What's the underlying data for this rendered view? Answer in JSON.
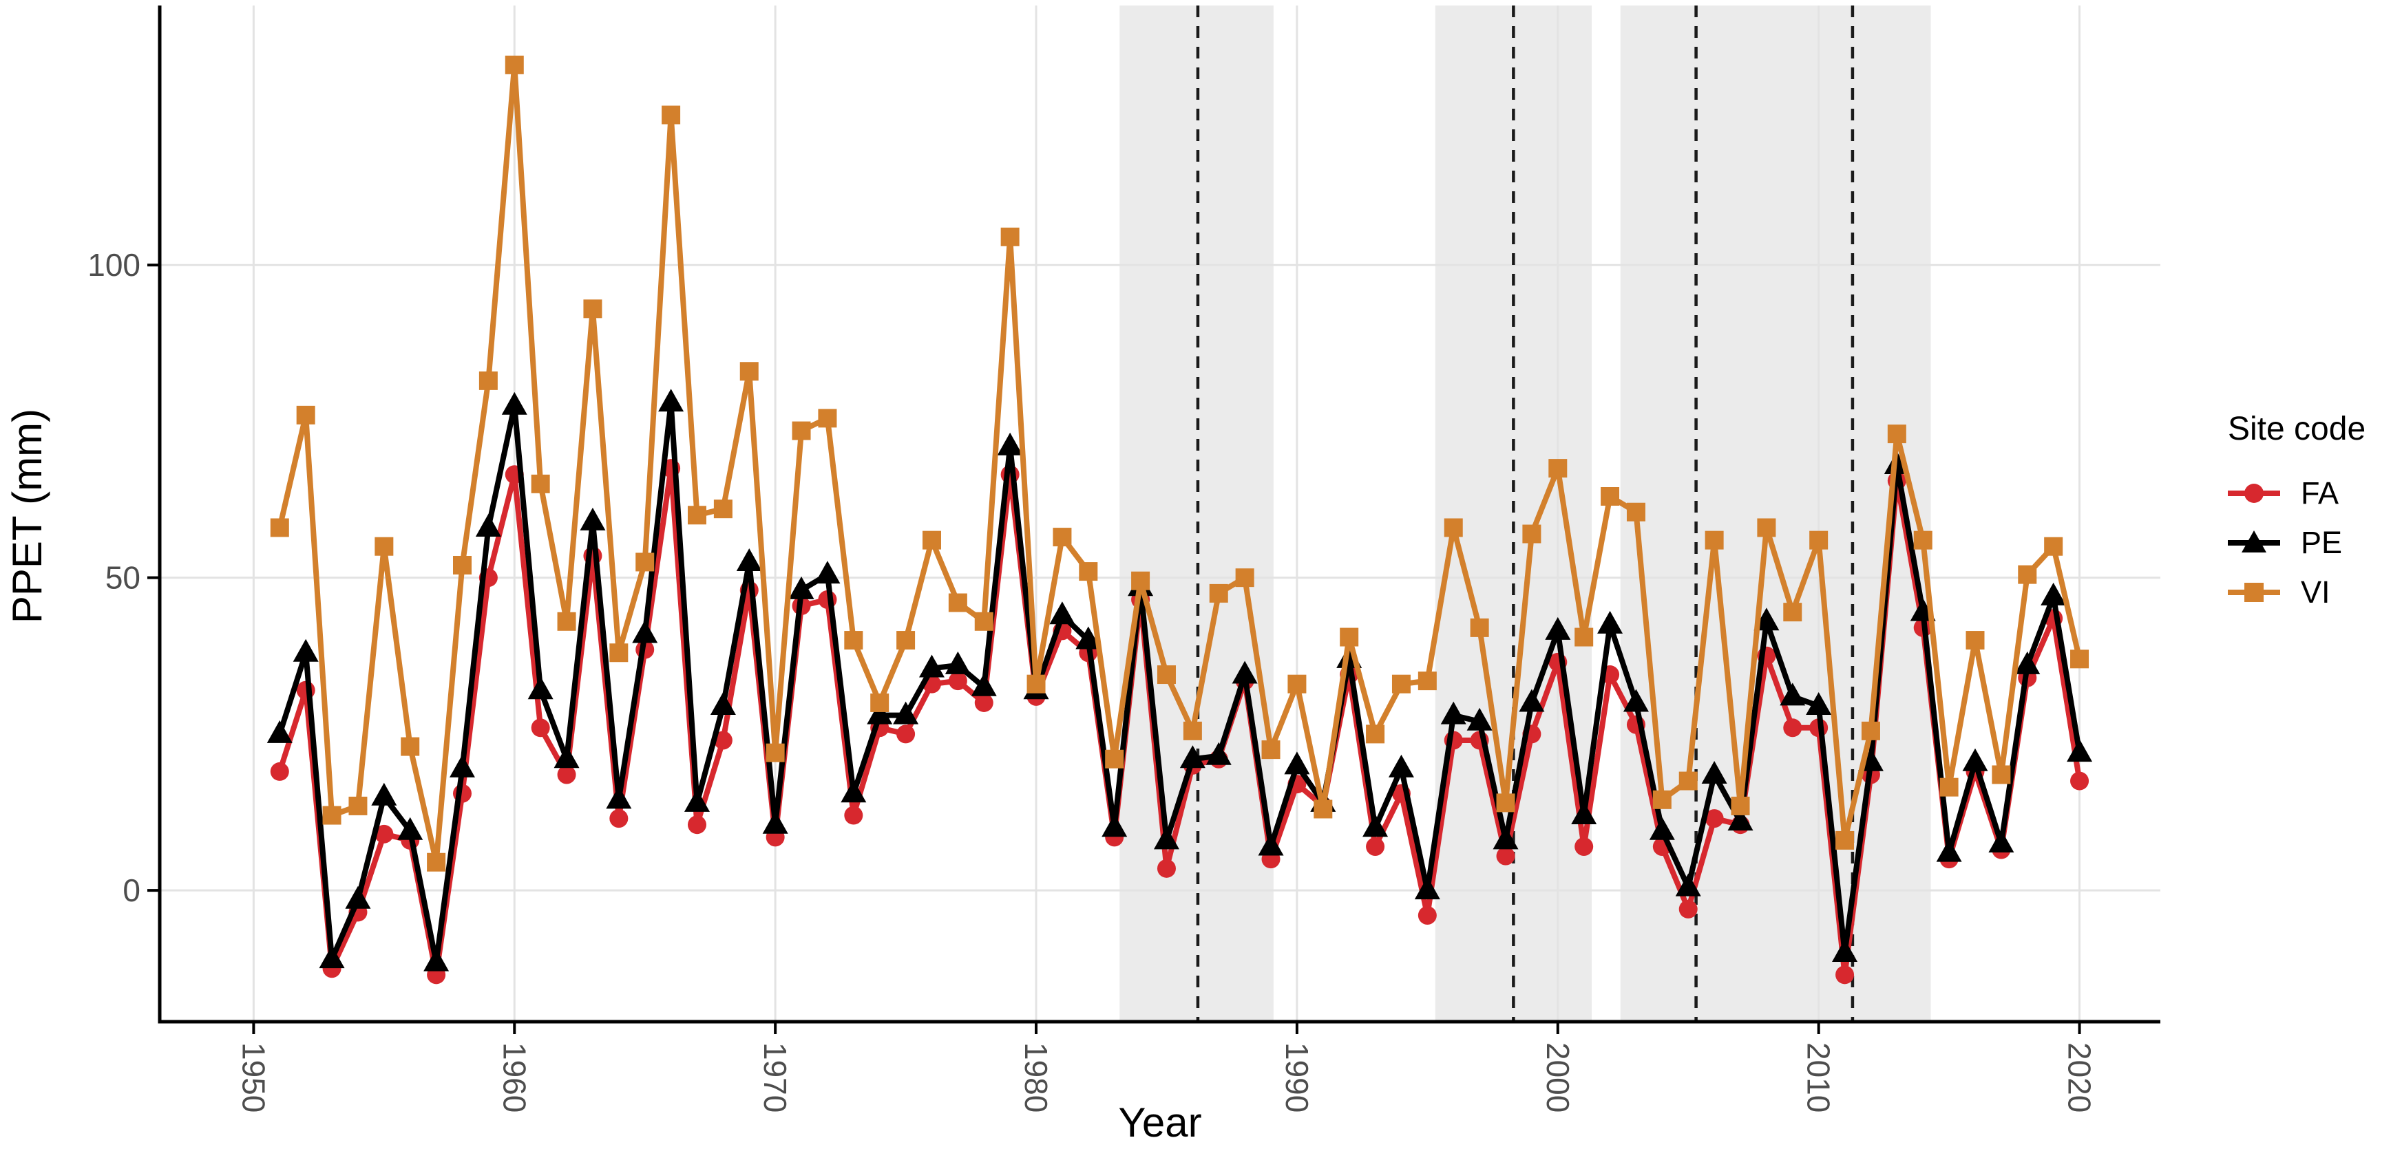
{
  "chart_data": {
    "type": "line",
    "title": "",
    "xlabel": "Year",
    "ylabel": "PPET (mm)",
    "legend_title": "Site code",
    "legend_position": "right",
    "grid": "major",
    "xlim": [
      1946.4,
      2023.1
    ],
    "ylim": [
      -21,
      141.5
    ],
    "x_ticks": [
      1950,
      1960,
      1970,
      1980,
      1990,
      2000,
      2010,
      2020
    ],
    "y_ticks": [
      0,
      50,
      100
    ],
    "shaded_bands": [
      [
        1983.2,
        1989.1
      ],
      [
        1995.3,
        2001.3
      ],
      [
        2002.4,
        2014.3
      ]
    ],
    "dashed_vlines": [
      1986.2,
      1998.3,
      2005.3,
      2011.3
    ],
    "x": [
      1951,
      1952,
      1953,
      1954,
      1955,
      1956,
      1957,
      1958,
      1959,
      1960,
      1961,
      1962,
      1963,
      1964,
      1965,
      1966,
      1967,
      1968,
      1969,
      1970,
      1971,
      1972,
      1973,
      1974,
      1975,
      1976,
      1977,
      1978,
      1979,
      1980,
      1981,
      1982,
      1983,
      1984,
      1985,
      1986,
      1987,
      1988,
      1989,
      1990,
      1991,
      1992,
      1993,
      1994,
      1995,
      1996,
      1997,
      1998,
      1999,
      2000,
      2001,
      2002,
      2003,
      2004,
      2005,
      2006,
      2007,
      2008,
      2009,
      2010,
      2011,
      2012,
      2013,
      2014,
      2015,
      2016,
      2017,
      2018,
      2019,
      2020
    ],
    "series": [
      {
        "name": "FA",
        "color": "#d7282e",
        "marker": "circle",
        "values": [
          19,
          32,
          -12.5,
          -3.5,
          9,
          8,
          -13.5,
          15.5,
          50,
          66.5,
          26,
          18.5,
          53.5,
          11.5,
          38.5,
          67.5,
          10.5,
          24,
          48,
          8.5,
          45.5,
          46.5,
          12,
          26,
          25,
          33,
          33.5,
          30,
          66.5,
          31,
          41.5,
          38,
          8.5,
          46.5,
          3.5,
          20,
          21,
          33.5,
          5,
          17,
          13.5,
          34.5,
          7,
          15.5,
          -4,
          24,
          24,
          5.5,
          25,
          36.5,
          7,
          34.5,
          26.5,
          7,
          -3,
          11.5,
          10.5,
          37.5,
          26,
          26,
          -13.5,
          18.5,
          65.5,
          42,
          5,
          19,
          6.5,
          34,
          43.5,
          17.5
        ]
      },
      {
        "name": "PE",
        "color": "#000000",
        "marker": "triangle",
        "values": [
          25,
          38,
          -11,
          -1.5,
          15,
          9.5,
          -11.5,
          19.5,
          58,
          77.5,
          32,
          21,
          59,
          14.5,
          41,
          78,
          14,
          29.5,
          52.5,
          10.5,
          48,
          50.5,
          15.5,
          28,
          28,
          35.5,
          36,
          32.5,
          71,
          32,
          44,
          40,
          10,
          48.5,
          8,
          21,
          21.5,
          34.5,
          7,
          20,
          14,
          37,
          10,
          19.5,
          0,
          28,
          27,
          8,
          30,
          41.5,
          12,
          42.5,
          30,
          9.5,
          0.5,
          18.5,
          11,
          43,
          31,
          29.5,
          -10,
          20.5,
          68,
          44.5,
          6,
          20.5,
          7.5,
          36,
          47,
          22
        ]
      },
      {
        "name": "VI",
        "color": "#d3802c",
        "marker": "square",
        "values": [
          58,
          76,
          12,
          13.5,
          55,
          23,
          4.5,
          52,
          81.5,
          132,
          65,
          43,
          93,
          38,
          52.5,
          124,
          60,
          61,
          83,
          22,
          73.5,
          75.5,
          40,
          30,
          40,
          56,
          46,
          43,
          104.5,
          33,
          56.5,
          51,
          21,
          49.5,
          34.5,
          25.5,
          47.5,
          50,
          22.5,
          33,
          13,
          40.5,
          25,
          33,
          33.5,
          58,
          42,
          14,
          57,
          67.5,
          40.5,
          63,
          60.5,
          14.5,
          17.5,
          56,
          13.5,
          58,
          44.5,
          56,
          8,
          25.5,
          73,
          56,
          16.5,
          40,
          18.5,
          50.5,
          55,
          37
        ]
      }
    ],
    "styles": {
      "band_color": "#ebebeb",
      "gridline_color": "#e3e3e3",
      "axis_color": "#000000",
      "tick_label_color": "#4d4d4d",
      "dashed_line_color": "#1a1a1a"
    }
  }
}
